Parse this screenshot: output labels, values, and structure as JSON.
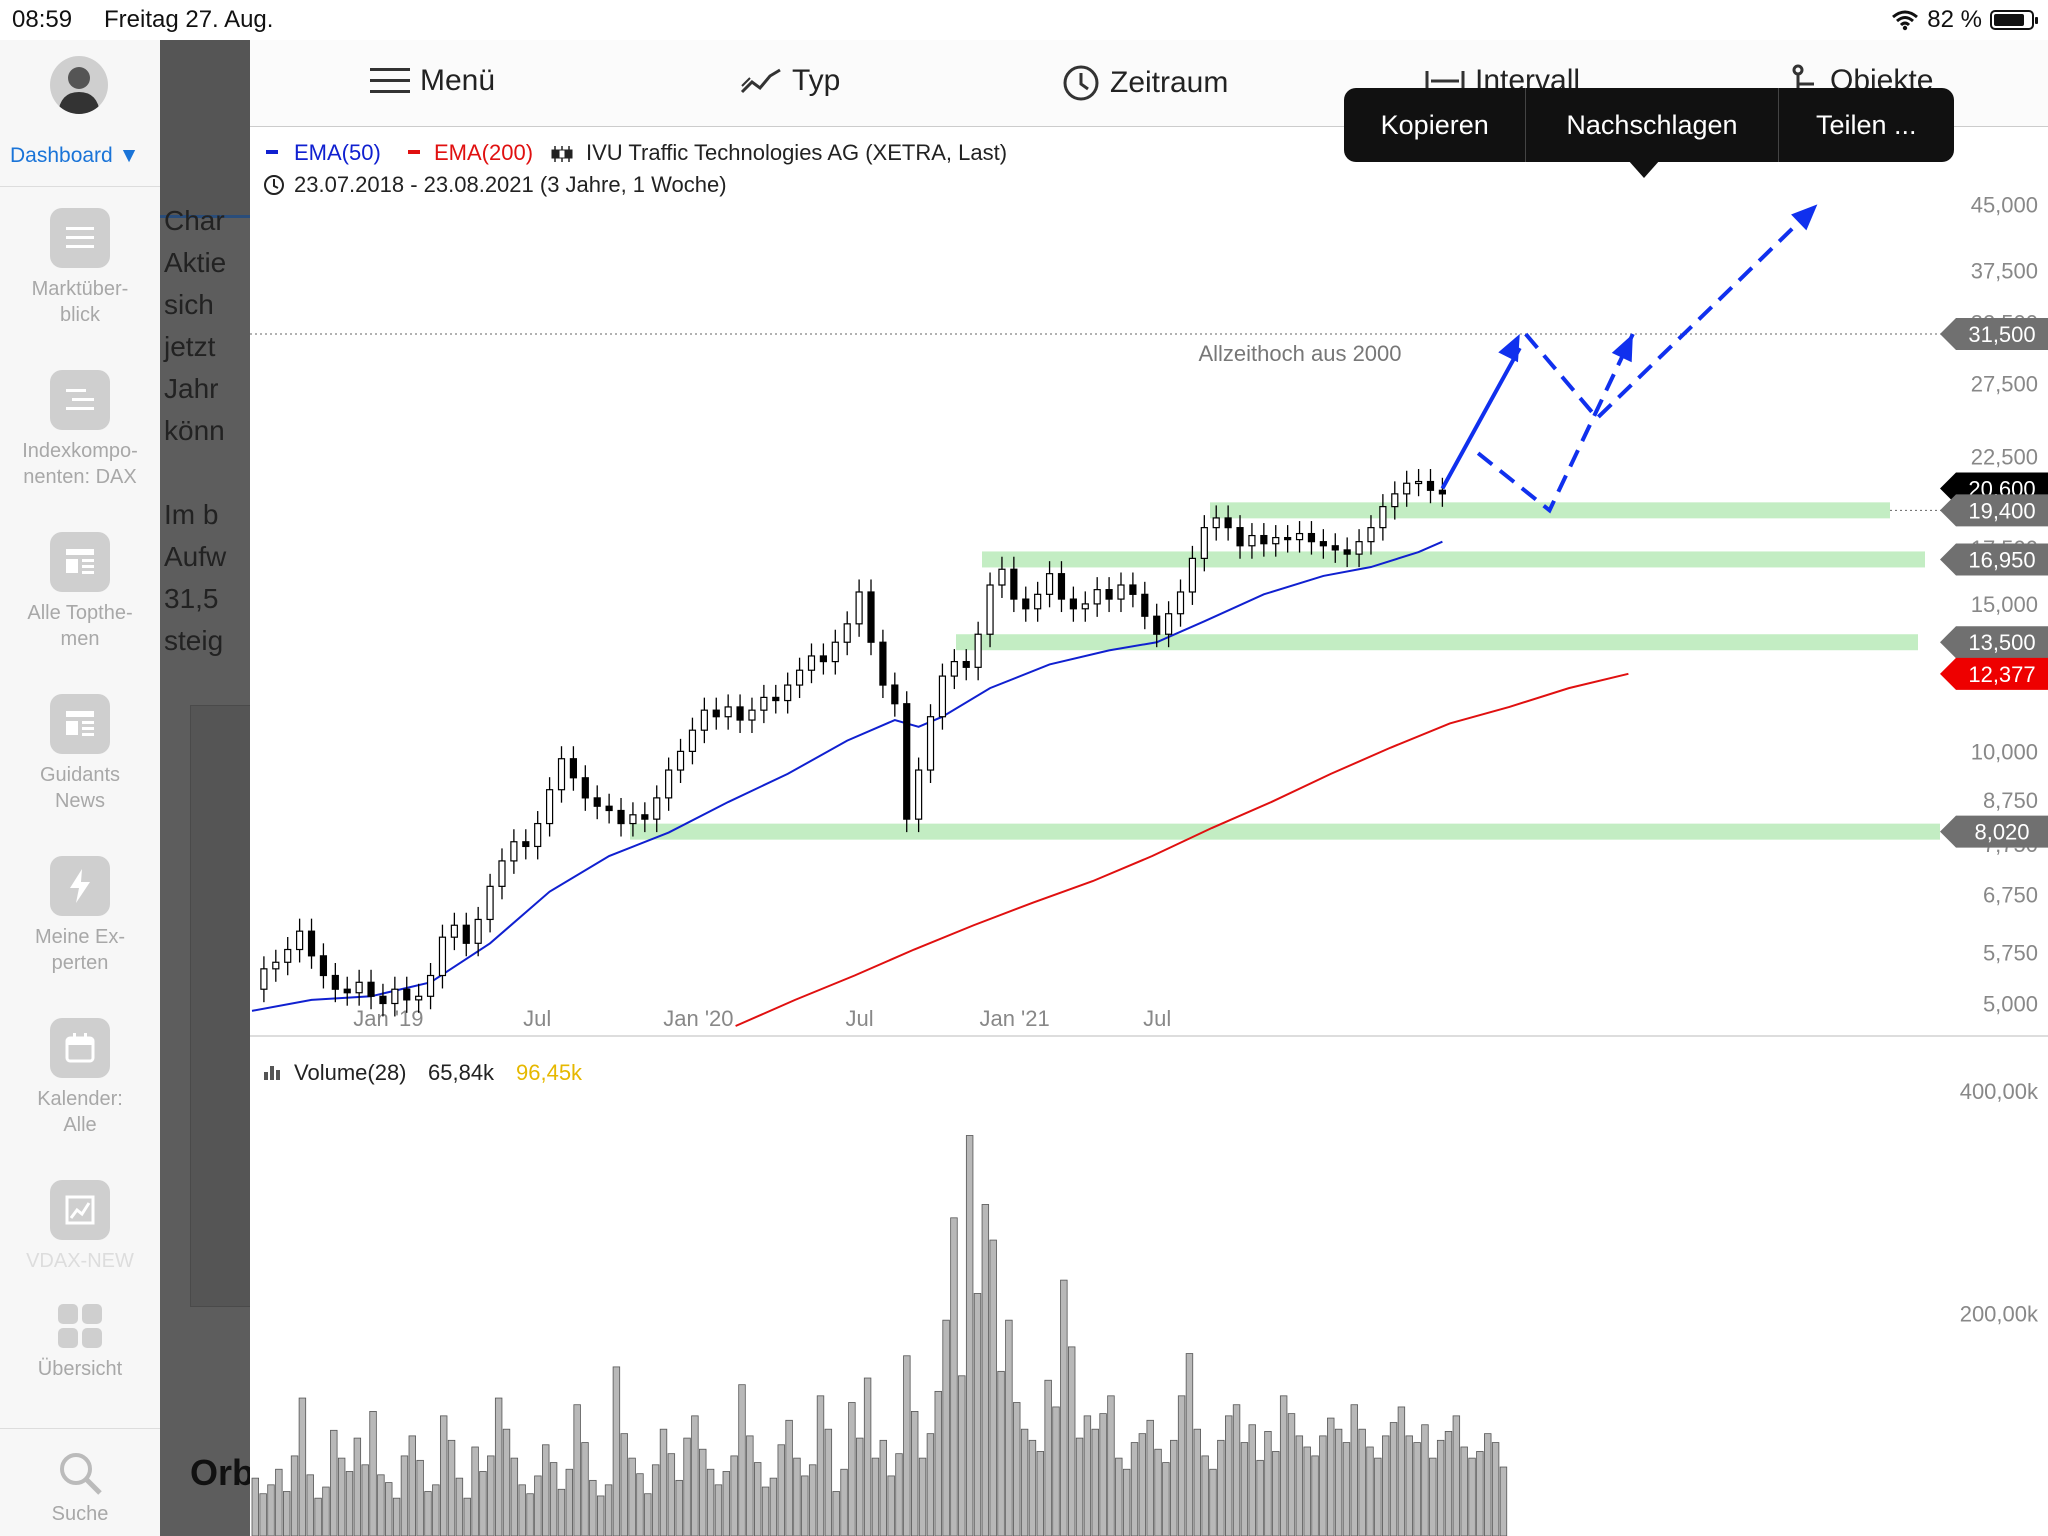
{
  "status_bar": {
    "time": "08:59",
    "date": "Freitag 27. Aug.",
    "battery_text": "82 %",
    "battery_level": 0.82
  },
  "sidebar": {
    "dashboard_label": "Dashboard ▼",
    "items": [
      {
        "label": "Marktüber-\nblick",
        "icon": "list-icon"
      },
      {
        "label": "Indexkompo-\nnenten: DAX",
        "icon": "index-list-icon"
      },
      {
        "label": "Alle Topthe-\nmen",
        "icon": "topics-icon"
      },
      {
        "label": "Guidants\nNews",
        "icon": "news-icon"
      },
      {
        "label": "Meine Ex-\nperten",
        "icon": "lightning-icon"
      },
      {
        "label": "Kalender:\nAlle",
        "icon": "calendar-icon"
      },
      {
        "label": "VDAX-NEW",
        "icon": "chart-icon"
      },
      {
        "label": "Übersicht",
        "icon": "grid-icon"
      },
      {
        "label": "Suche",
        "icon": "search-icon"
      }
    ]
  },
  "background_article": {
    "lines": [
      "Char",
      "Aktie",
      "sich",
      "jetzt",
      "Jahr",
      "könn",
      "",
      "Im b",
      "Aufw",
      "31,5",
      "steig"
    ],
    "bottom_heading": "Orb"
  },
  "toolbar": {
    "menu": "Menü",
    "type": "Typ",
    "period": "Zeitraum",
    "interval": "Intervall",
    "objects": "Objekte"
  },
  "popup_menu": {
    "items": [
      "Kopieren",
      "Nachschlagen",
      "Teilen ..."
    ]
  },
  "chart_data": {
    "type": "candlestick",
    "legend": {
      "ema50": "EMA(50)",
      "ema200": "EMA(200)",
      "instrument": "IVU Traffic Technologies  AG (XETRA, Last)",
      "range": "23.07.2018 - 23.08.2021   (3 Jahre, 1 Woche)"
    },
    "colors": {
      "ema50": "#1020d0",
      "ema200": "#e01010",
      "candles": "#000000",
      "zones": "#b8eab8",
      "arrows": "#1030ee"
    },
    "y_scale": "log",
    "ylim": [
      4700,
      50000
    ],
    "x_ticks": [
      "Jan '19",
      "Jul",
      "Jan '20",
      "Jul",
      "Jan '21",
      "Jul"
    ],
    "y_ticks": [
      "45,000",
      "37,500",
      "32,500",
      "27,500",
      "22,500",
      "17,500",
      "15,000",
      "10,000",
      "8,750",
      "7,750",
      "6,750",
      "5,750",
      "5,000"
    ],
    "price_tags": [
      {
        "label": "31,500",
        "kind": "grey"
      },
      {
        "label": "20,600",
        "kind": "black"
      },
      {
        "label": "19,400",
        "kind": "grey"
      },
      {
        "label": "16,950",
        "kind": "grey"
      },
      {
        "label": "13,500",
        "kind": "grey"
      },
      {
        "label": "12,377",
        "kind": "red"
      },
      {
        "label": "8,020",
        "kind": "grey"
      }
    ],
    "annotation": "Allzeithoch aus 2000",
    "support_zones": [
      19400,
      16950,
      13500,
      8020
    ],
    "ath_line": 31500,
    "price_path": [
      [
        0,
        5200
      ],
      [
        2,
        5500
      ],
      [
        4,
        5600
      ],
      [
        6,
        5800
      ],
      [
        8,
        6100
      ],
      [
        10,
        5700
      ],
      [
        12,
        5400
      ],
      [
        14,
        5200
      ],
      [
        16,
        5150
      ],
      [
        18,
        5300
      ],
      [
        20,
        5100
      ],
      [
        22,
        5000
      ],
      [
        24,
        5200
      ],
      [
        26,
        5050
      ],
      [
        28,
        5100
      ],
      [
        30,
        5400
      ],
      [
        32,
        6000
      ],
      [
        34,
        6200
      ],
      [
        36,
        5900
      ],
      [
        38,
        6300
      ],
      [
        40,
        6900
      ],
      [
        42,
        7400
      ],
      [
        44,
        7800
      ],
      [
        46,
        7700
      ],
      [
        48,
        8200
      ],
      [
        50,
        9000
      ],
      [
        52,
        9800
      ],
      [
        54,
        9300
      ],
      [
        56,
        8800
      ],
      [
        58,
        8600
      ],
      [
        60,
        8500
      ],
      [
        62,
        8200
      ],
      [
        64,
        8400
      ],
      [
        66,
        8300
      ],
      [
        68,
        8800
      ],
      [
        70,
        9500
      ],
      [
        72,
        10000
      ],
      [
        74,
        10600
      ],
      [
        76,
        11200
      ],
      [
        78,
        11000
      ],
      [
        80,
        11300
      ],
      [
        82,
        10900
      ],
      [
        84,
        11200
      ],
      [
        86,
        11600
      ],
      [
        88,
        11500
      ],
      [
        90,
        12000
      ],
      [
        92,
        12500
      ],
      [
        94,
        13000
      ],
      [
        96,
        12800
      ],
      [
        98,
        13500
      ],
      [
        100,
        14200
      ],
      [
        102,
        15500
      ],
      [
        104,
        13500
      ],
      [
        106,
        12000
      ],
      [
        108,
        11400
      ],
      [
        110,
        8300
      ],
      [
        112,
        9500
      ],
      [
        114,
        11000
      ],
      [
        116,
        12300
      ],
      [
        118,
        12800
      ],
      [
        120,
        12600
      ],
      [
        122,
        13800
      ],
      [
        124,
        15800
      ],
      [
        126,
        16500
      ],
      [
        128,
        15200
      ],
      [
        130,
        14800
      ],
      [
        132,
        15400
      ],
      [
        134,
        16300
      ],
      [
        136,
        15200
      ],
      [
        138,
        14800
      ],
      [
        140,
        15000
      ],
      [
        142,
        15600
      ],
      [
        144,
        15200
      ],
      [
        146,
        15800
      ],
      [
        148,
        15400
      ],
      [
        150,
        14500
      ],
      [
        152,
        13800
      ],
      [
        154,
        14600
      ],
      [
        156,
        15500
      ],
      [
        158,
        17000
      ],
      [
        160,
        18500
      ],
      [
        162,
        19000
      ],
      [
        164,
        18500
      ],
      [
        166,
        17600
      ],
      [
        168,
        18100
      ],
      [
        170,
        17700
      ],
      [
        172,
        18000
      ],
      [
        174,
        17900
      ],
      [
        176,
        18200
      ],
      [
        178,
        17800
      ],
      [
        180,
        17600
      ],
      [
        182,
        17400
      ],
      [
        184,
        17200
      ],
      [
        186,
        17800
      ],
      [
        188,
        18500
      ],
      [
        190,
        19600
      ],
      [
        192,
        20300
      ],
      [
        194,
        20900
      ],
      [
        196,
        21000
      ],
      [
        198,
        20500
      ],
      [
        200,
        20300
      ]
    ],
    "ema50_path": [
      [
        0,
        4900
      ],
      [
        10,
        5050
      ],
      [
        20,
        5100
      ],
      [
        30,
        5300
      ],
      [
        40,
        5900
      ],
      [
        50,
        6800
      ],
      [
        60,
        7500
      ],
      [
        70,
        8000
      ],
      [
        80,
        8700
      ],
      [
        90,
        9400
      ],
      [
        100,
        10300
      ],
      [
        108,
        10900
      ],
      [
        112,
        10700
      ],
      [
        116,
        11000
      ],
      [
        124,
        11900
      ],
      [
        134,
        12700
      ],
      [
        144,
        13200
      ],
      [
        152,
        13500
      ],
      [
        160,
        14300
      ],
      [
        170,
        15400
      ],
      [
        180,
        16200
      ],
      [
        188,
        16600
      ],
      [
        196,
        17300
      ],
      [
        200,
        17800
      ]
    ],
    "ema200_path": [
      [
        50,
        4700
      ],
      [
        60,
        5050
      ],
      [
        70,
        5400
      ],
      [
        80,
        5800
      ],
      [
        90,
        6200
      ],
      [
        100,
        6600
      ],
      [
        110,
        7000
      ],
      [
        120,
        7500
      ],
      [
        130,
        8100
      ],
      [
        140,
        8700
      ],
      [
        150,
        9400
      ],
      [
        160,
        10100
      ],
      [
        170,
        10800
      ],
      [
        180,
        11300
      ],
      [
        190,
        11900
      ],
      [
        200,
        12377
      ]
    ],
    "projection_solid": [
      [
        200,
        20600
      ],
      [
        213,
        31500
      ]
    ],
    "projection_dashed_1": [
      [
        206,
        22700
      ],
      [
        218,
        19400
      ],
      [
        232,
        31500
      ]
    ],
    "projection_dashed_2": [
      [
        214,
        31500
      ],
      [
        226,
        25000
      ],
      [
        263,
        45000
      ]
    ],
    "volume": {
      "label": "Volume(28)",
      "value": "65,84k",
      "average": "96,45k",
      "average_color": "#e6b800",
      "y_ticks": [
        "400,00k",
        "200,00k"
      ],
      "bars": [
        52,
        38,
        46,
        60,
        40,
        72,
        124,
        55,
        34,
        44,
        95,
        70,
        58,
        88,
        64,
        112,
        55,
        48,
        34,
        72,
        90,
        68,
        40,
        46,
        108,
        86,
        52,
        34,
        80,
        58,
        72,
        124,
        96,
        70,
        46,
        38,
        54,
        82,
        66,
        42,
        60,
        118,
        84,
        50,
        36,
        46,
        152,
        92,
        70,
        56,
        38,
        64,
        96,
        74,
        50,
        88,
        108,
        78,
        60,
        46,
        58,
        72,
        136,
        90,
        66,
        44,
        52,
        82,
        104,
        70,
        54,
        64,
        126,
        96,
        40,
        60,
        120,
        88,
        142,
        70,
        86,
        54,
        74,
        162,
        112,
        70,
        92,
        130,
        194,
        286,
        144,
        360,
        218,
        298,
        266,
        148,
        194,
        120,
        96,
        86,
        76,
        140,
        116,
        230,
        170,
        88,
        108,
        96,
        110,
        126,
        70,
        60,
        84,
        92,
        104,
        78,
        66,
        86,
        126,
        164,
        96,
        72,
        60,
        86,
        108,
        118,
        84,
        100,
        68,
        94,
        76,
        126,
        110,
        90,
        80,
        72,
        90,
        106,
        96,
        84,
        118,
        96,
        80,
        70,
        90,
        102,
        116,
        90,
        84,
        100,
        70,
        86,
        94,
        108,
        80,
        70,
        76,
        92,
        84,
        62
      ]
    }
  }
}
